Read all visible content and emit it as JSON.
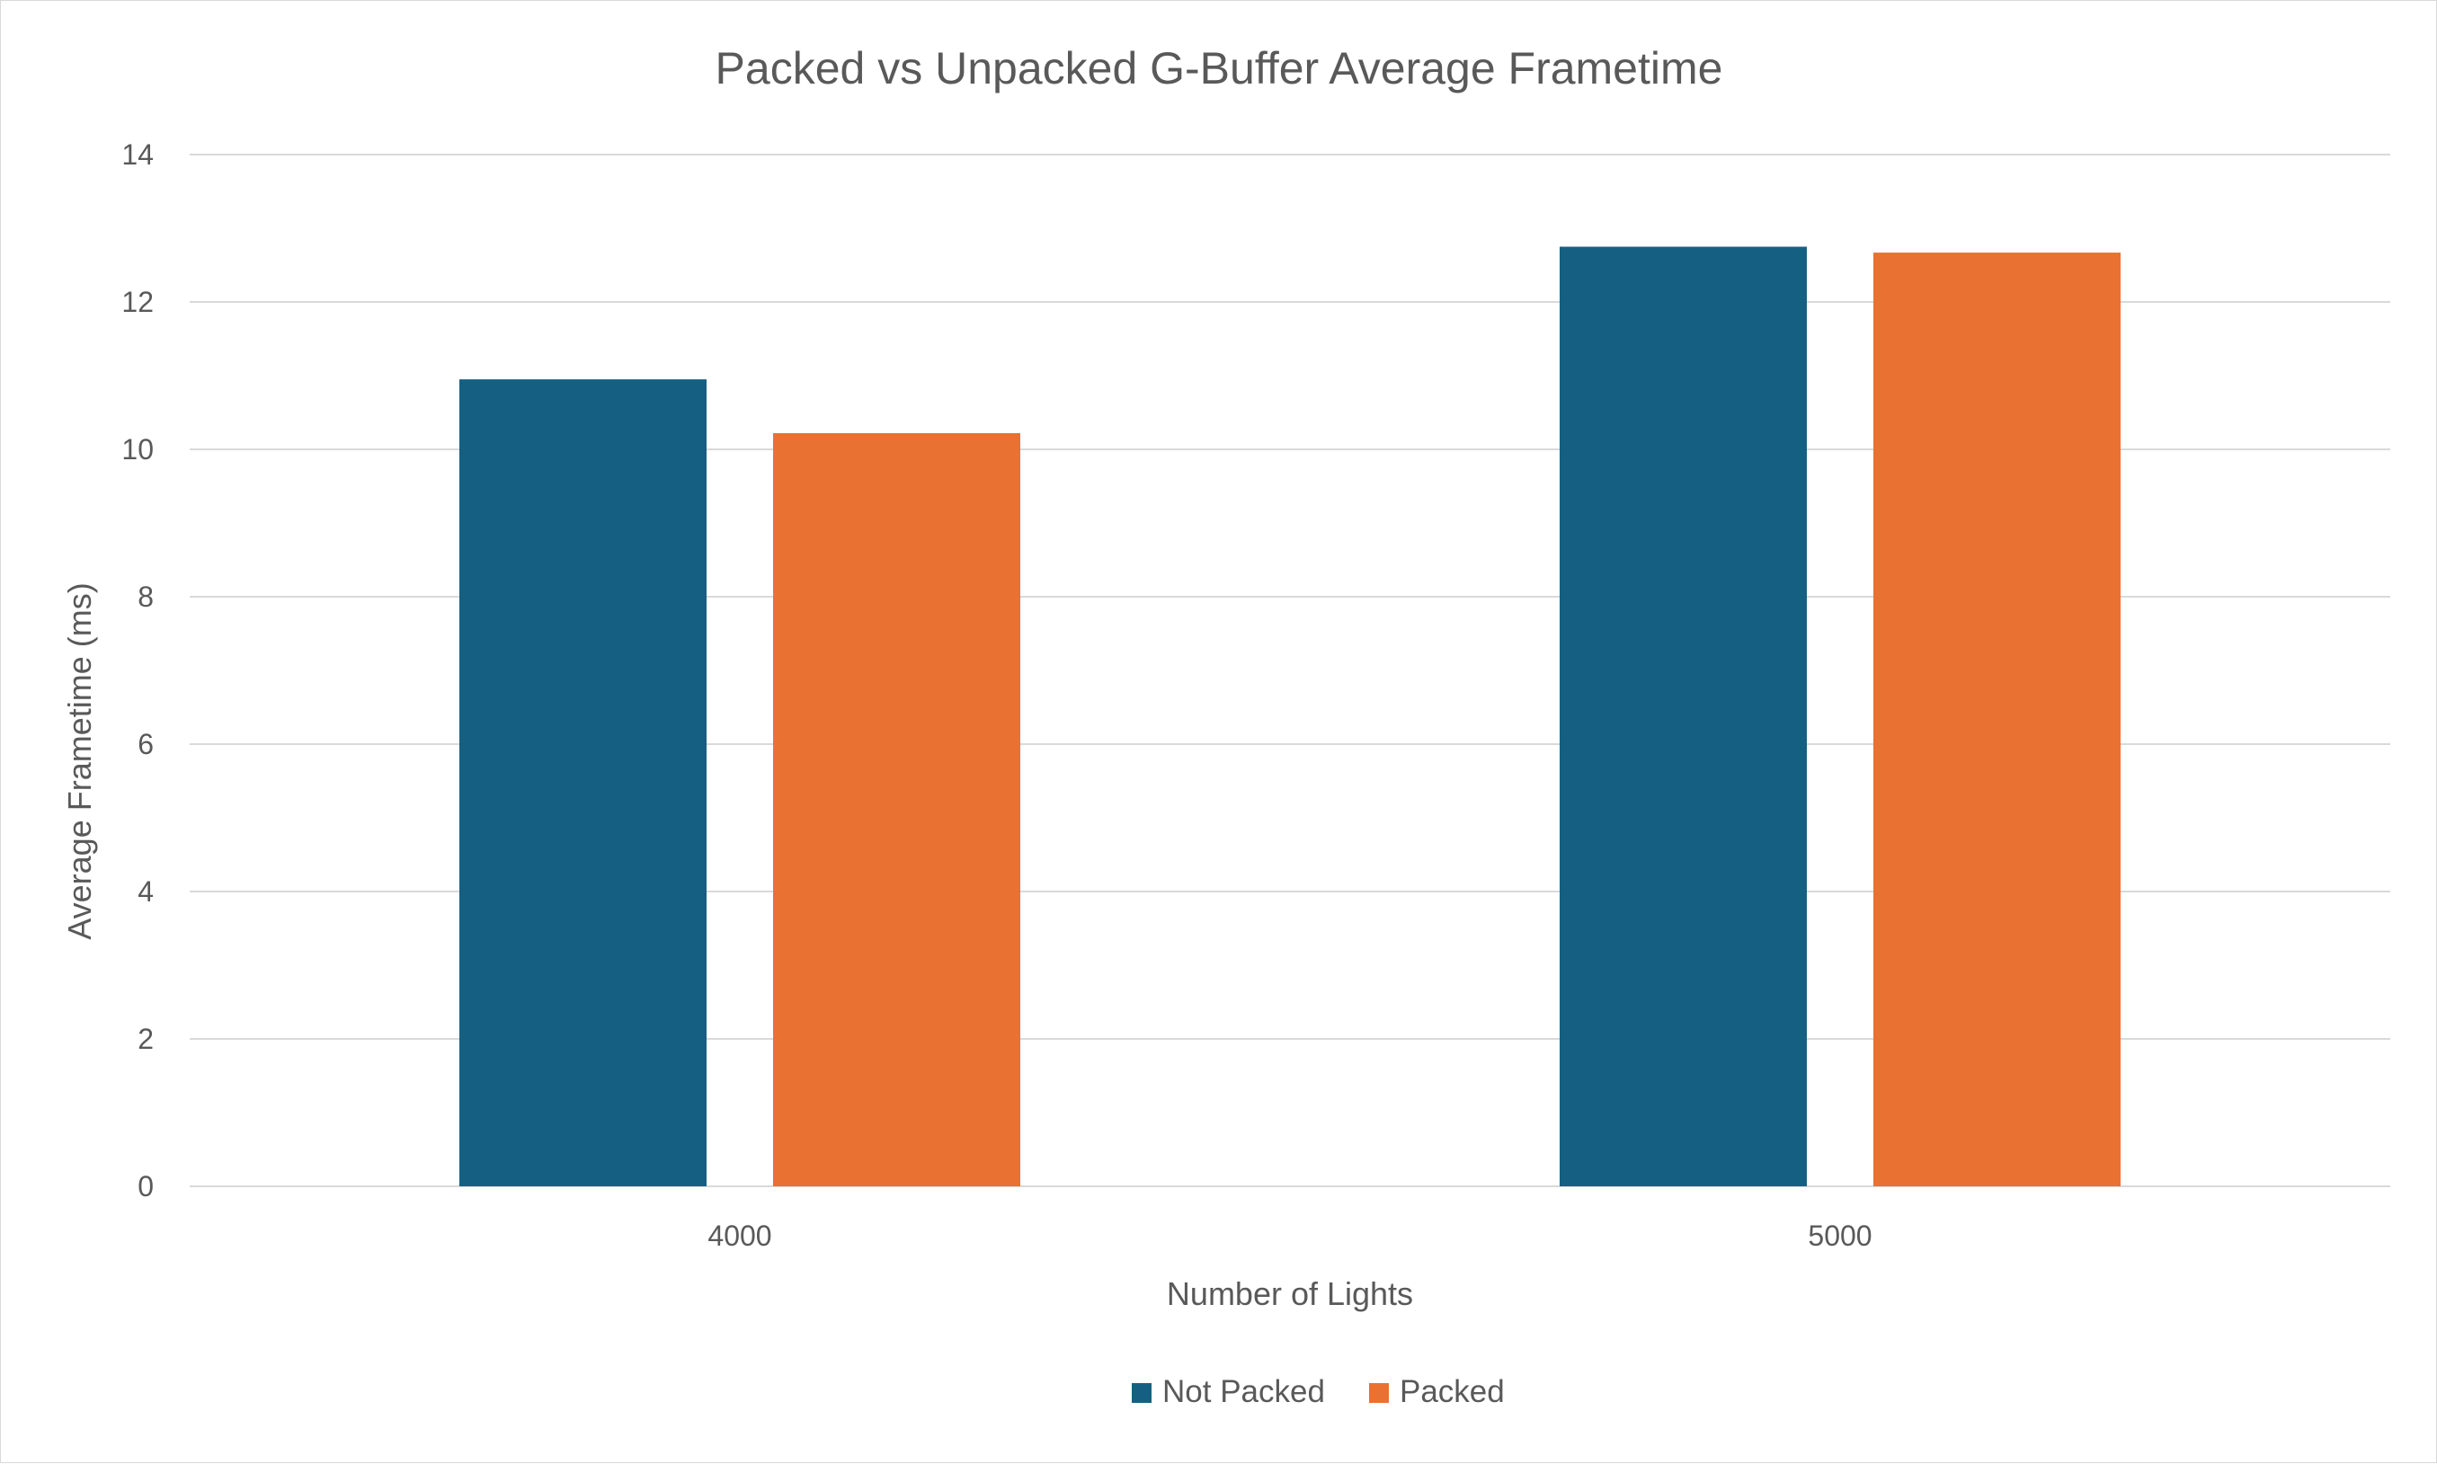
{
  "chart_data": {
    "type": "bar",
    "title": "Packed vs Unpacked G-Buffer Average Frametime",
    "xlabel": "Number of Lights",
    "ylabel": "Average Frametime (ms)",
    "categories": [
      "4000",
      "5000"
    ],
    "series": [
      {
        "name": "Not Packed",
        "color": "#156082",
        "values": [
          10.95,
          12.75
        ]
      },
      {
        "name": "Packed",
        "color": "#E97132",
        "values": [
          10.22,
          12.67
        ]
      }
    ],
    "ylim": [
      0,
      14
    ],
    "yticks": [
      0,
      2,
      4,
      6,
      8,
      10,
      12,
      14
    ],
    "grid": true,
    "legend_position": "bottom"
  }
}
